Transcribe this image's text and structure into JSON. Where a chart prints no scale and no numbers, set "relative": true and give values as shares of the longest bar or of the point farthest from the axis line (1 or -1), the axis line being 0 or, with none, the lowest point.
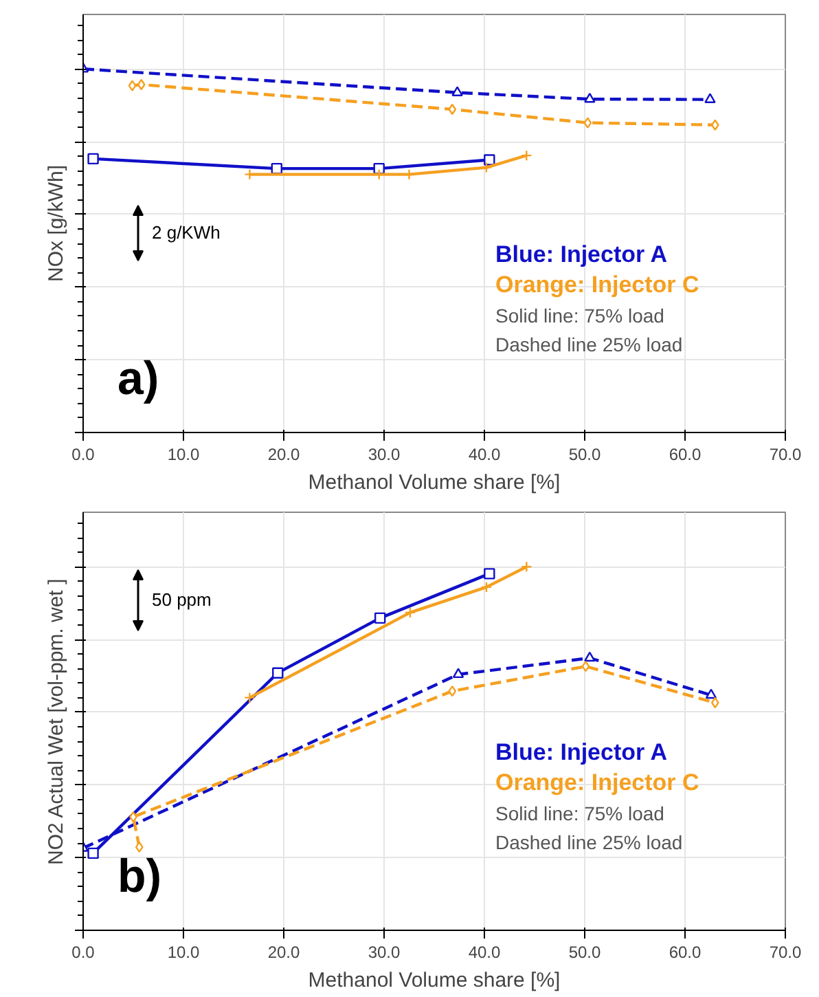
{
  "chart_data": [
    {
      "type": "line",
      "relative": true,
      "xlabel": "Methanol Volume share [%]",
      "ylabel": "NOx [g/kWh]",
      "xlim": [
        0,
        70
      ],
      "xticks": [
        {
          "value": 0,
          "label": "0.0"
        },
        {
          "value": 10,
          "label": "10.0"
        },
        {
          "value": 20,
          "label": "20.0"
        },
        {
          "value": 30,
          "label": "30.0"
        },
        {
          "value": 40,
          "label": "40.0"
        },
        {
          "value": 50,
          "label": "50.0"
        },
        {
          "value": 60,
          "label": "60.0"
        },
        {
          "value": 70,
          "label": "70.0"
        }
      ],
      "grid": true,
      "annotations": [
        "a)",
        "2 g/KWh",
        "Blue: Injector A",
        "Orange: Injector C",
        "Solid line: 75% load",
        "Dashed line 25% load"
      ],
      "series": [
        {
          "color": "#1010c8",
          "marker": "square",
          "line_style": "solid",
          "x": [
            1.0,
            19.3,
            29.5,
            40.5
          ],
          "values": [
            0.753,
            0.726,
            0.726,
            0.75
          ]
        },
        {
          "color": "#1010c8",
          "marker": "triangle",
          "line_style": "dashed",
          "x": [
            0,
            37.3,
            50.5,
            62.5
          ],
          "values": [
            1.0,
            0.935,
            0.917,
            0.916
          ]
        },
        {
          "color": "#f5a020",
          "marker": "cross",
          "line_style": "solid",
          "x": [
            16.6,
            29.5,
            32.5,
            40.2,
            44.2
          ],
          "values": [
            0.71,
            0.71,
            0.71,
            0.729,
            0.762
          ]
        },
        {
          "color": "#f5a020",
          "marker": "diamond",
          "line_style": "dashed",
          "x": [
            4.9,
            5.8,
            36.8,
            50.3,
            63.0
          ],
          "values": [
            0.954,
            0.957,
            0.889,
            0.852,
            0.846
          ]
        }
      ]
    },
    {
      "type": "line",
      "relative": true,
      "xlabel": "Methanol Volume share [%]",
      "ylabel": "NO2 Actual Wet [vol-ppm. wet ]",
      "xlim": [
        0,
        70
      ],
      "xticks": [
        {
          "value": 0,
          "label": "0.0"
        },
        {
          "value": 10,
          "label": "10.0"
        },
        {
          "value": 20,
          "label": "20.0"
        },
        {
          "value": 30,
          "label": "30.0"
        },
        {
          "value": 40,
          "label": "40.0"
        },
        {
          "value": 50,
          "label": "50.0"
        },
        {
          "value": 60,
          "label": "60.0"
        },
        {
          "value": 70,
          "label": "70.0"
        }
      ],
      "grid": true,
      "annotations": [
        "b)",
        "50 ppm",
        "Blue: Injector A",
        "Orange: Injector C",
        "Solid line: 75% load",
        "Dashed line 25% load"
      ],
      "series": [
        {
          "color": "#1010c8",
          "marker": "square",
          "line_style": "solid",
          "x": [
            1.0,
            19.4,
            29.6,
            40.5
          ],
          "values": [
            0.212,
            0.708,
            0.859,
            0.981
          ]
        },
        {
          "color": "#1010c8",
          "marker": "triangle",
          "line_style": "dashed",
          "x": [
            0,
            37.4,
            50.5,
            62.6
          ],
          "values": [
            0.226,
            0.704,
            0.749,
            0.647
          ]
        },
        {
          "color": "#f5a020",
          "marker": "cross",
          "line_style": "solid",
          "x": [
            16.6,
            32.6,
            40.2,
            44.2
          ],
          "values": [
            0.64,
            0.874,
            0.944,
            1.0
          ]
        },
        {
          "color": "#f5a020",
          "marker": "diamond",
          "line_style": "dashed",
          "x": [
            5.6,
            5.0,
            36.8,
            50.1,
            63.0
          ],
          "values": [
            0.229,
            0.312,
            0.658,
            0.726,
            0.626
          ]
        }
      ]
    }
  ]
}
